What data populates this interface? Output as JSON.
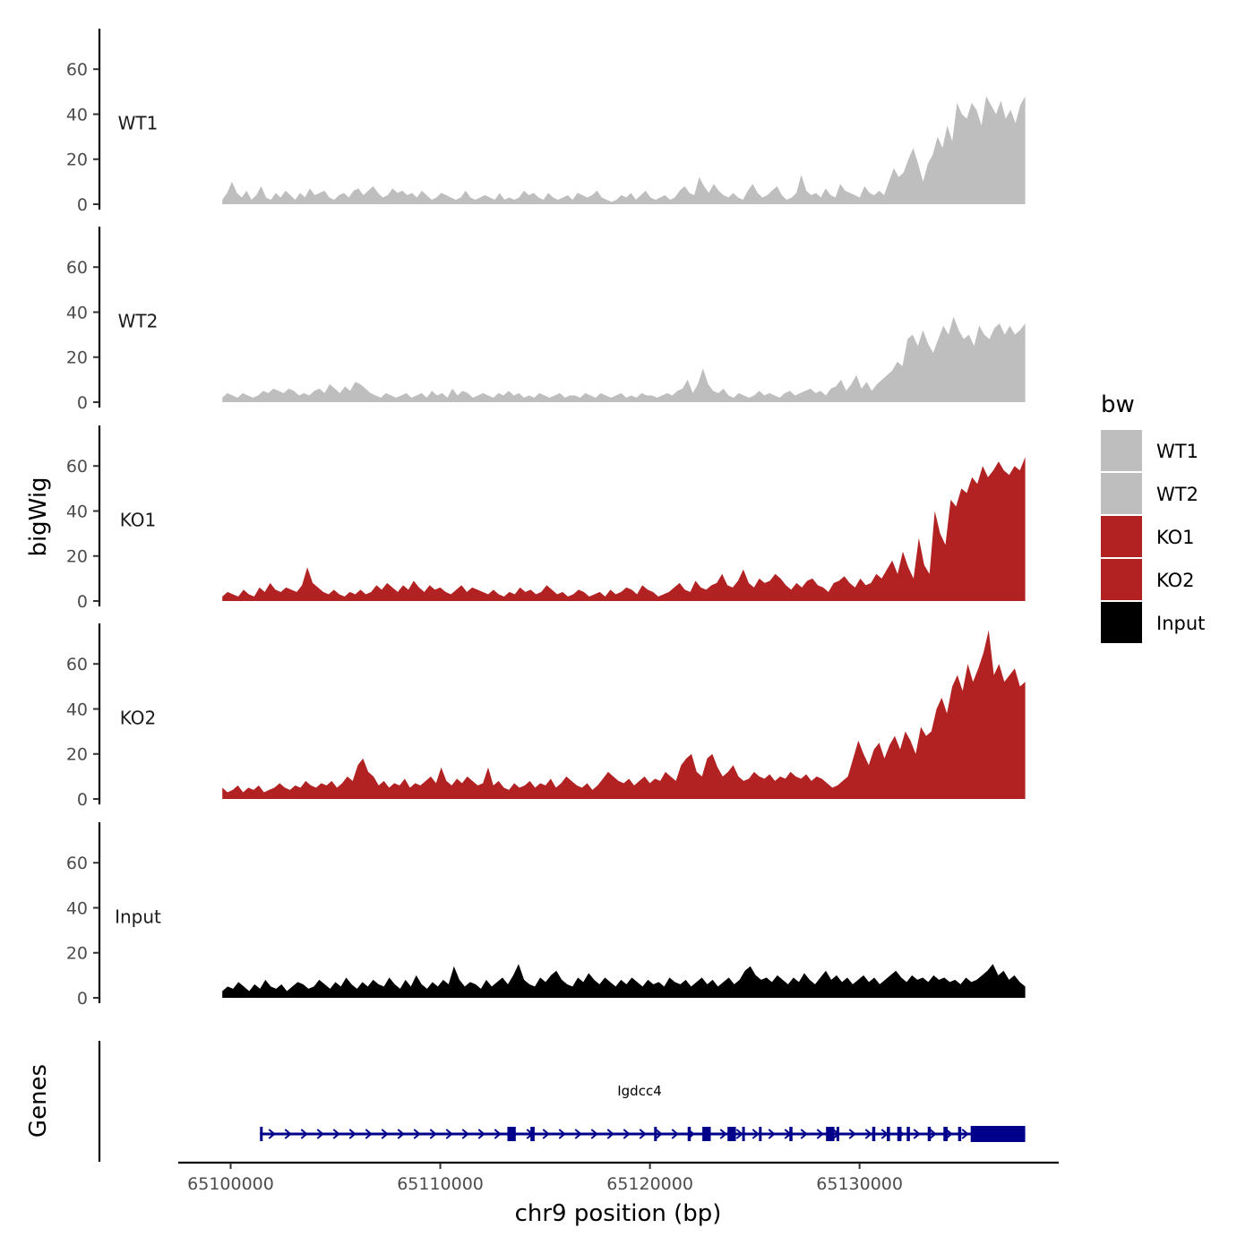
{
  "chart_data": {
    "type": "area",
    "facet_title": "bigWig",
    "genes_title": "Genes",
    "xlabel": "chr9 position (bp)",
    "xlim": [
      65097500,
      65139500
    ],
    "data_range": [
      65099600,
      65137900
    ],
    "x_ticks": [
      65100000,
      65110000,
      65120000,
      65130000
    ],
    "x_tick_labels": [
      "65100000",
      "65110000",
      "65120000",
      "65130000"
    ],
    "ylim": [
      0,
      78
    ],
    "y_ticks": [
      0,
      20,
      40,
      60
    ],
    "y_tick_labels": [
      "0",
      "20",
      "40",
      "60"
    ],
    "legend": {
      "title": "bw",
      "entries": [
        {
          "label": "WT1",
          "color": "#bebebe"
        },
        {
          "label": "WT2",
          "color": "#bebebe"
        },
        {
          "label": "KO1",
          "color": "#b22222"
        },
        {
          "label": "KO2",
          "color": "#b22222"
        },
        {
          "label": "Input",
          "color": "#000000"
        }
      ]
    },
    "series": [
      {
        "name": "WT1",
        "color": "#bebebe",
        "values": [
          2,
          5,
          10,
          5,
          3,
          6,
          2,
          4,
          8,
          3,
          2,
          5,
          3,
          6,
          4,
          2,
          5,
          3,
          7,
          4,
          5,
          6,
          3,
          2,
          4,
          5,
          3,
          6,
          7,
          4,
          6,
          8,
          5,
          3,
          4,
          7,
          5,
          6,
          4,
          5,
          3,
          6,
          4,
          2,
          3,
          5,
          4,
          3,
          2,
          3,
          6,
          3,
          2,
          3,
          4,
          3,
          2,
          5,
          2,
          3,
          2,
          3,
          6,
          4,
          5,
          3,
          2,
          5,
          3,
          2,
          3,
          4,
          2,
          5,
          4,
          3,
          4,
          6,
          3,
          2,
          1,
          2,
          4,
          3,
          5,
          2,
          4,
          6,
          3,
          2,
          3,
          4,
          2,
          3,
          6,
          8,
          5,
          4,
          12,
          8,
          5,
          9,
          6,
          4,
          3,
          5,
          3,
          2,
          6,
          9,
          5,
          3,
          4,
          6,
          8,
          4,
          2,
          3,
          5,
          13,
          6,
          4,
          5,
          3,
          7,
          4,
          3,
          9,
          6,
          5,
          4,
          3,
          8,
          5,
          4,
          6,
          4,
          10,
          16,
          12,
          14,
          20,
          25,
          18,
          10,
          18,
          22,
          30,
          25,
          35,
          28,
          45,
          40,
          38,
          45,
          42,
          35,
          48,
          44,
          40,
          46,
          38,
          42,
          36,
          44,
          48
        ],
        "peaks": [
          [
            55,
            1
          ],
          [
            140,
            1
          ],
          [
            145,
            2
          ]
        ]
      },
      {
        "name": "WT2",
        "color": "#bebebe",
        "values": [
          2,
          4,
          3,
          2,
          4,
          3,
          2,
          3,
          5,
          4,
          6,
          5,
          4,
          6,
          5,
          3,
          4,
          3,
          5,
          6,
          4,
          8,
          6,
          4,
          7,
          5,
          9,
          8,
          6,
          4,
          3,
          2,
          4,
          3,
          2,
          3,
          4,
          2,
          3,
          4,
          2,
          5,
          3,
          4,
          2,
          6,
          3,
          5,
          4,
          2,
          3,
          4,
          3,
          2,
          4,
          3,
          5,
          3,
          4,
          2,
          3,
          2,
          4,
          3,
          2,
          3,
          4,
          2,
          3,
          3,
          2,
          4,
          3,
          2,
          4,
          3,
          2,
          3,
          4,
          2,
          3,
          2,
          4,
          3,
          3,
          2,
          3,
          4,
          3,
          5,
          6,
          10,
          4,
          8,
          15,
          8,
          5,
          4,
          6,
          3,
          2,
          4,
          3,
          2,
          3,
          5,
          3,
          4,
          3,
          2,
          4,
          5,
          3,
          4,
          5,
          6,
          4,
          5,
          3,
          6,
          7,
          10,
          5,
          8,
          12,
          6,
          9,
          5,
          8,
          10,
          12,
          14,
          18,
          16,
          28,
          30,
          25,
          32,
          26,
          22,
          28,
          34,
          30,
          38,
          32,
          28,
          30,
          25,
          34,
          30,
          28,
          33,
          35,
          30,
          34,
          30,
          32,
          35
        ],
        "peaks": []
      },
      {
        "name": "KO1",
        "color": "#b22222",
        "values": [
          2,
          4,
          3,
          2,
          5,
          3,
          2,
          6,
          4,
          8,
          5,
          4,
          6,
          5,
          4,
          7,
          15,
          8,
          6,
          4,
          3,
          5,
          3,
          2,
          4,
          3,
          5,
          3,
          4,
          7,
          5,
          8,
          6,
          4,
          7,
          5,
          9,
          6,
          4,
          7,
          5,
          6,
          4,
          3,
          5,
          7,
          4,
          6,
          5,
          4,
          3,
          5,
          3,
          2,
          4,
          3,
          6,
          4,
          5,
          3,
          4,
          7,
          5,
          3,
          4,
          2,
          3,
          5,
          4,
          2,
          3,
          4,
          2,
          5,
          3,
          4,
          6,
          5,
          3,
          7,
          5,
          4,
          2,
          3,
          4,
          6,
          8,
          5,
          4,
          9,
          6,
          5,
          7,
          8,
          12,
          7,
          6,
          9,
          14,
          8,
          6,
          10,
          8,
          9,
          12,
          10,
          7,
          5,
          8,
          6,
          9,
          10,
          7,
          6,
          4,
          8,
          9,
          11,
          8,
          6,
          10,
          7,
          8,
          12,
          10,
          14,
          18,
          12,
          22,
          15,
          10,
          28,
          16,
          12,
          40,
          30,
          25,
          45,
          42,
          50,
          48,
          55,
          52,
          60,
          55,
          58,
          62,
          58,
          56,
          60,
          58,
          64
        ],
        "peaks": []
      },
      {
        "name": "KO2",
        "color": "#b22222",
        "values": [
          5,
          3,
          4,
          6,
          3,
          5,
          4,
          6,
          3,
          4,
          5,
          7,
          5,
          4,
          6,
          5,
          8,
          6,
          5,
          7,
          6,
          8,
          5,
          7,
          10,
          8,
          15,
          18,
          12,
          10,
          6,
          8,
          5,
          7,
          6,
          9,
          5,
          7,
          6,
          8,
          10,
          7,
          14,
          8,
          6,
          9,
          7,
          10,
          8,
          6,
          7,
          14,
          6,
          8,
          5,
          4,
          7,
          5,
          6,
          8,
          5,
          7,
          6,
          9,
          5,
          7,
          10,
          8,
          6,
          5,
          7,
          4,
          6,
          9,
          12,
          10,
          8,
          7,
          9,
          6,
          8,
          10,
          7,
          9,
          8,
          12,
          10,
          8,
          15,
          18,
          20,
          12,
          10,
          18,
          20,
          14,
          10,
          12,
          15,
          10,
          8,
          9,
          12,
          10,
          9,
          11,
          8,
          10,
          9,
          12,
          10,
          9,
          11,
          8,
          10,
          9,
          7,
          5,
          6,
          8,
          10,
          18,
          26,
          20,
          15,
          22,
          25,
          18,
          24,
          28,
          22,
          30,
          26,
          20,
          32,
          28,
          30,
          40,
          45,
          38,
          50,
          55,
          48,
          60,
          52,
          58,
          65,
          75,
          55,
          60,
          52,
          55,
          58,
          50,
          52
        ],
        "peaks": []
      },
      {
        "name": "Input",
        "color": "#000000",
        "values": [
          3,
          5,
          4,
          7,
          5,
          3,
          6,
          4,
          8,
          5,
          4,
          6,
          3,
          5,
          7,
          6,
          4,
          5,
          8,
          6,
          4,
          7,
          5,
          9,
          6,
          4,
          7,
          5,
          8,
          6,
          5,
          9,
          6,
          4,
          8,
          5,
          10,
          6,
          4,
          7,
          5,
          8,
          6,
          14,
          8,
          5,
          7,
          6,
          4,
          8,
          5,
          7,
          9,
          6,
          10,
          15,
          8,
          6,
          5,
          9,
          7,
          10,
          12,
          8,
          6,
          5,
          9,
          7,
          11,
          8,
          6,
          9,
          7,
          5,
          8,
          6,
          9,
          7,
          5,
          8,
          6,
          7,
          5,
          9,
          7,
          6,
          8,
          5,
          7,
          9,
          6,
          8,
          5,
          7,
          9,
          6,
          8,
          12,
          14,
          10,
          8,
          9,
          7,
          10,
          8,
          6,
          9,
          7,
          11,
          8,
          6,
          9,
          12,
          8,
          10,
          7,
          9,
          6,
          8,
          10,
          7,
          9,
          6,
          8,
          10,
          12,
          9,
          7,
          10,
          8,
          9,
          7,
          10,
          8,
          9,
          7,
          8,
          6,
          9,
          7,
          8,
          10,
          12,
          15,
          10,
          12,
          8,
          10,
          7,
          5
        ],
        "peaks": []
      }
    ],
    "gene": {
      "name": "Igdcc4",
      "start": 65101400,
      "end": 65137900,
      "strand": "+",
      "color": "#00008b",
      "exons": [
        [
          65101400,
          65101500
        ],
        [
          65113200,
          65113600
        ],
        [
          65114300,
          65114500
        ],
        [
          65120200,
          65120300
        ],
        [
          65121800,
          65121950
        ],
        [
          65122500,
          65122900
        ],
        [
          65123700,
          65124100
        ],
        [
          65124400,
          65124500
        ],
        [
          65125200,
          65125300
        ],
        [
          65126650,
          65126800
        ],
        [
          65128400,
          65128800
        ],
        [
          65128900,
          65129000
        ],
        [
          65130600,
          65130750
        ],
        [
          65131300,
          65131450
        ],
        [
          65131800,
          65132000
        ],
        [
          65132250,
          65132400
        ],
        [
          65133250,
          65133400
        ],
        [
          65134000,
          65134200
        ],
        [
          65134700,
          65134850
        ],
        [
          65135300,
          65137900
        ]
      ]
    }
  }
}
